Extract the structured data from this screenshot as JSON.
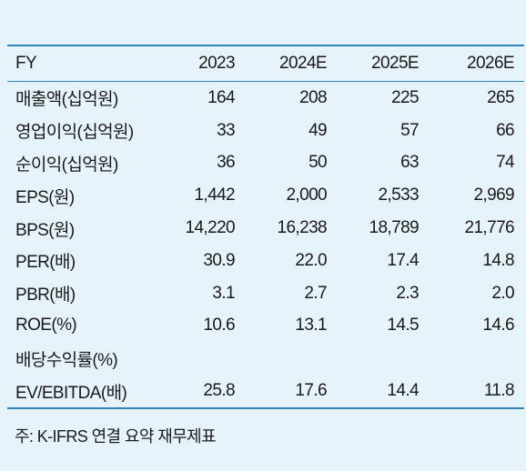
{
  "header": {
    "label": "FY",
    "years": [
      "2023",
      "2024E",
      "2025E",
      "2026E"
    ]
  },
  "rows": [
    {
      "label": "매출액(십억원)",
      "values": [
        "164",
        "208",
        "225",
        "265"
      ]
    },
    {
      "label": "영업이익(십억원)",
      "values": [
        "33",
        "49",
        "57",
        "66"
      ]
    },
    {
      "label": "순이익(십억원)",
      "values": [
        "36",
        "50",
        "63",
        "74"
      ]
    },
    {
      "label": "EPS(원)",
      "values": [
        "1,442",
        "2,000",
        "2,533",
        "2,969"
      ]
    },
    {
      "label": "BPS(원)",
      "values": [
        "14,220",
        "16,238",
        "18,789",
        "21,776"
      ]
    },
    {
      "label": "PER(배)",
      "values": [
        "30.9",
        "22.0",
        "17.4",
        "14.8"
      ]
    },
    {
      "label": "PBR(배)",
      "values": [
        "3.1",
        "2.7",
        "2.3",
        "2.0"
      ]
    },
    {
      "label": "ROE(%)",
      "values": [
        "10.6",
        "13.1",
        "14.5",
        "14.6"
      ]
    },
    {
      "label": "배당수익률(%)",
      "values": [
        "",
        "",
        "",
        ""
      ]
    },
    {
      "label": "EV/EBITDA(배)",
      "values": [
        "25.8",
        "17.6",
        "14.4",
        "11.8"
      ]
    }
  ],
  "note": "주: K-IFRS 연결 요약 재무제표",
  "colors": {
    "background": "#e6f3fb",
    "rule": "#2f86b3",
    "text": "#1a1a1a"
  }
}
